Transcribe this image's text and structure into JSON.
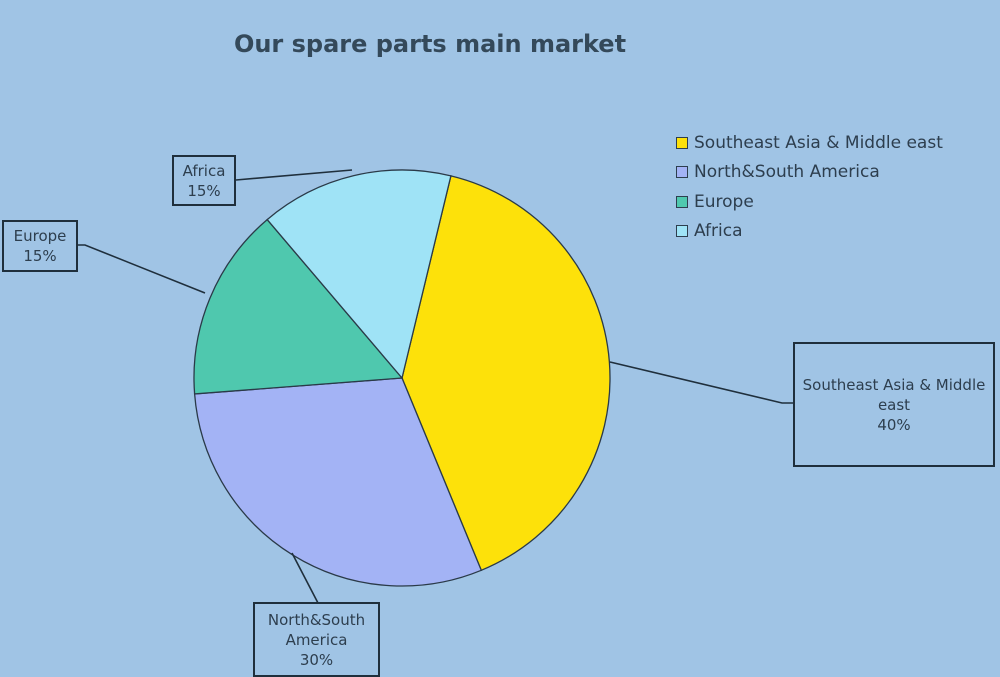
{
  "chart_data": {
    "type": "pie",
    "title": "Our spare parts main market",
    "legend_position": "right",
    "start_angle_deg": 13.6,
    "direction": "clockwise",
    "slices": [
      {
        "label": "Southeast Asia & Middle east",
        "value": 40,
        "value_label": "40%",
        "color": "#fde10a"
      },
      {
        "label": "North&South America",
        "value": 30,
        "value_label": "30%",
        "color": "#a3b3f5"
      },
      {
        "label": "Europe",
        "value": 15,
        "value_label": "15%",
        "color": "#4fc8ae"
      },
      {
        "label": "Africa",
        "value": 15,
        "value_label": "15%",
        "color": "#9fe3f6"
      }
    ]
  }
}
